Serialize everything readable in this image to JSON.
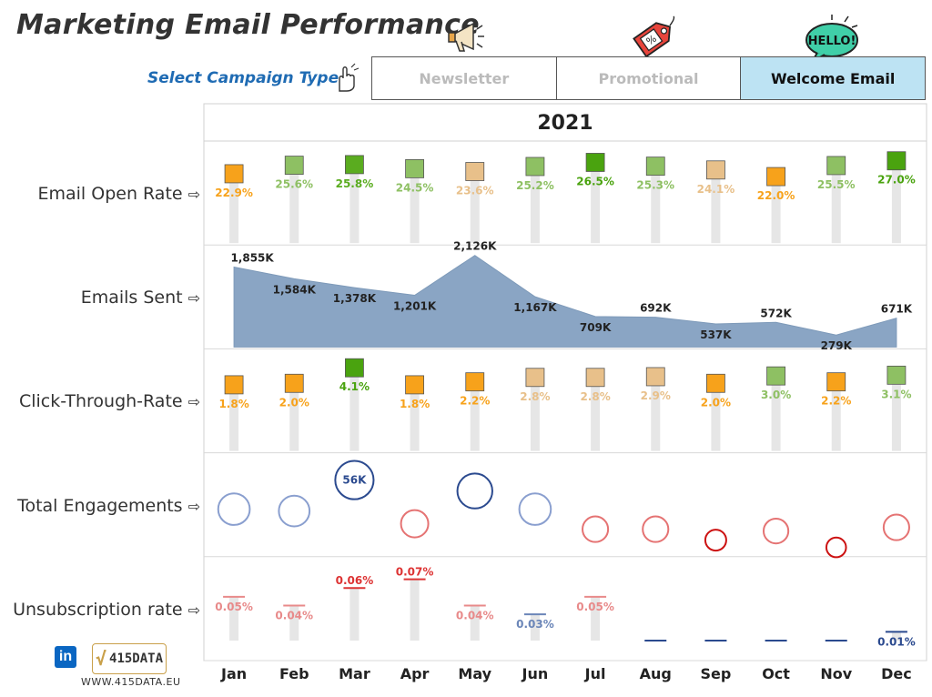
{
  "header": {
    "title": "Marketing Email Performance",
    "select_label": "Select Campaign Type"
  },
  "tabs": [
    {
      "label": "Newsletter",
      "active": false,
      "icon": "megaphone-icon"
    },
    {
      "label": "Promotional",
      "active": false,
      "icon": "discount-tag-icon"
    },
    {
      "label": "Welcome Email",
      "active": true,
      "icon": "hello-speech-bubble-icon"
    }
  ],
  "footer": {
    "url": "WWW.415DATA.EU",
    "brand_logo_text": "415DATA",
    "linkedin_icon": "linkedin-icon"
  },
  "chart_data": {
    "type": "dashboard",
    "year": "2021",
    "months": [
      "Jan",
      "Feb",
      "Mar",
      "Apr",
      "May",
      "Jun",
      "Jul",
      "Aug",
      "Sep",
      "Oct",
      "Nov",
      "Dec"
    ],
    "rows": [
      {
        "name": "Email Open Rate",
        "kind": "square-lollipop",
        "values": [
          22.9,
          25.6,
          25.8,
          24.5,
          23.6,
          25.2,
          26.5,
          25.3,
          24.1,
          22.0,
          25.5,
          27.0
        ],
        "labels": [
          "22.9%",
          "25.6%",
          "25.8%",
          "24.5%",
          "23.6%",
          "25.2%",
          "26.5%",
          "25.3%",
          "24.1%",
          "22.0%",
          "25.5%",
          "27.0%"
        ],
        "colors": [
          "#f7a21b",
          "#8ec063",
          "#5aac1f",
          "#8ec063",
          "#e8c08a",
          "#8ec063",
          "#4aa30f",
          "#8ec063",
          "#e8c08a",
          "#f7a21b",
          "#8ec063",
          "#4aa30f"
        ],
        "range": [
          20,
          27.5
        ]
      },
      {
        "name": "Emails Sent",
        "kind": "area",
        "values": [
          1855,
          1584,
          1378,
          1201,
          2126,
          1167,
          709,
          692,
          537,
          572,
          279,
          671
        ],
        "labels": [
          "1,855K",
          "1,584K",
          "1,378K",
          "1,201K",
          "2,126K",
          "1,167K",
          "709K",
          "692K",
          "537K",
          "572K",
          "279K",
          "671K"
        ],
        "color": "#8aa5c4",
        "range": [
          0,
          2200
        ]
      },
      {
        "name": "Click-Through-Rate",
        "kind": "square-lollipop",
        "values": [
          1.8,
          2.0,
          4.1,
          1.8,
          2.2,
          2.8,
          2.8,
          2.9,
          2.0,
          3.0,
          2.2,
          3.1
        ],
        "labels": [
          "1.8%",
          "2.0%",
          "4.1%",
          "1.8%",
          "2.2%",
          "2.8%",
          "2.8%",
          "2.9%",
          "2.0%",
          "3.0%",
          "2.2%",
          "3.1%"
        ],
        "colors": [
          "#f7a21b",
          "#f7a21b",
          "#4aa30f",
          "#f7a21b",
          "#f7a21b",
          "#e8c08a",
          "#e8c08a",
          "#e8c08a",
          "#f7a21b",
          "#8ec063",
          "#f7a21b",
          "#8ec063"
        ],
        "range": [
          1,
          4.2
        ]
      },
      {
        "name": "Total Engagements",
        "kind": "bubble",
        "values": [
          40,
          38,
          56,
          30,
          48,
          40,
          26,
          26,
          15,
          24,
          12,
          26
        ],
        "labels": [
          "",
          "",
          "56K",
          "",
          "",
          "",
          "",
          "",
          "",
          "",
          "",
          ""
        ],
        "colors": [
          "#8a9fcf",
          "#8a9fcf",
          "#2b4a8f",
          "#e57373",
          "#2b4a8f",
          "#8a9fcf",
          "#e57373",
          "#e57373",
          "#cc1111",
          "#e57373",
          "#cc1111",
          "#e57373"
        ],
        "range": [
          0,
          60
        ]
      },
      {
        "name": "Unsubscription rate",
        "kind": "dash-lollipop",
        "values": [
          0.05,
          0.04,
          0.06,
          0.07,
          0.04,
          0.03,
          0.05,
          0.0,
          0.0,
          0.0,
          0.0,
          0.01
        ],
        "labels": [
          "0.05%",
          "0.04%",
          "0.06%",
          "0.07%",
          "0.04%",
          "0.03%",
          "0.05%",
          "",
          "",
          "",
          "",
          "0.01%"
        ],
        "colors": [
          "#e88a8a",
          "#e88a8a",
          "#dd3333",
          "#dd3333",
          "#e88a8a",
          "#6b86b8",
          "#e88a8a",
          "#2b4a8f",
          "#2b4a8f",
          "#2b4a8f",
          "#2b4a8f",
          "#2b4a8f"
        ],
        "range": [
          0,
          0.075
        ]
      }
    ]
  }
}
